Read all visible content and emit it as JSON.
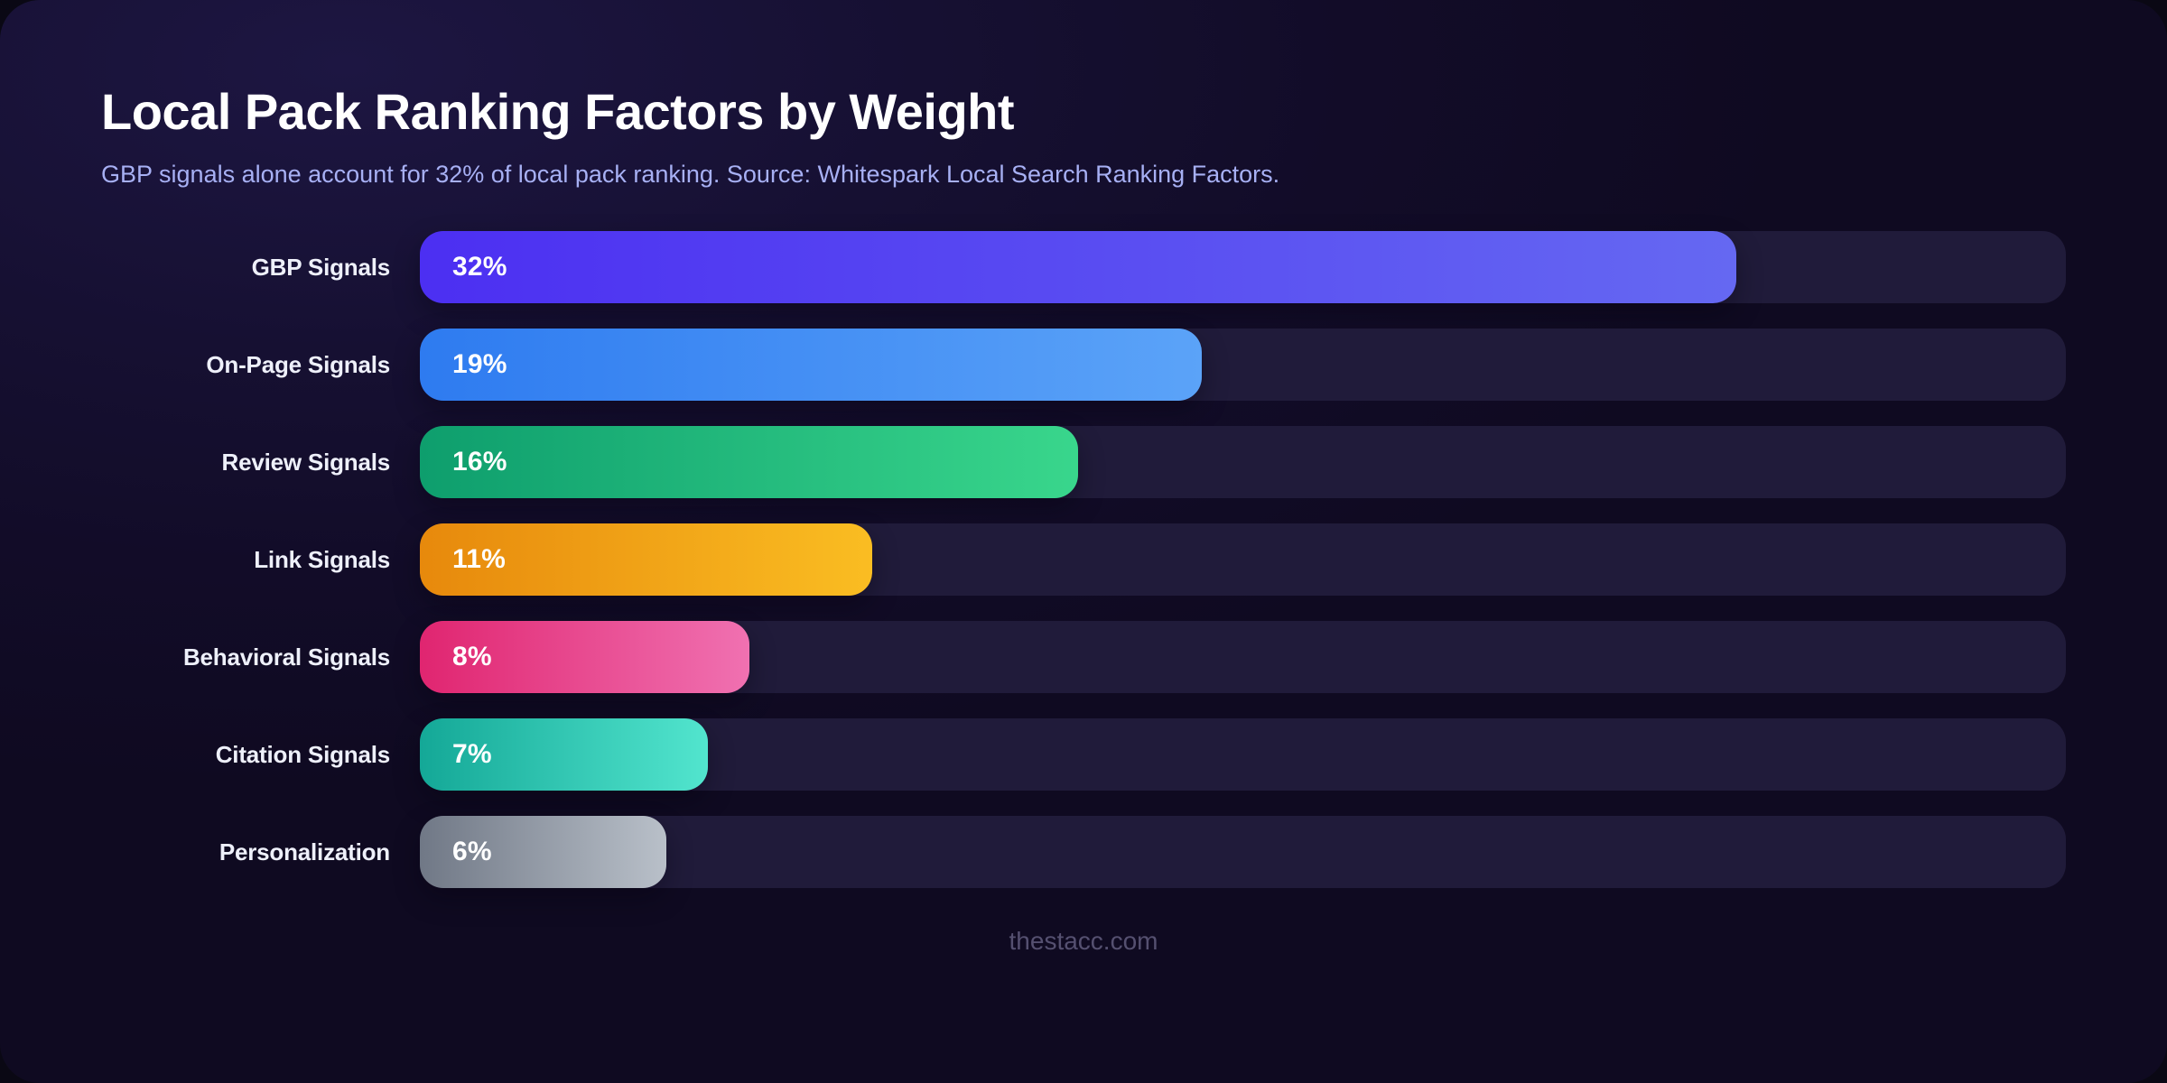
{
  "header": {
    "title": "Local Pack Ranking Factors by Weight",
    "subtitle": "GBP signals alone account for 32% of local pack ranking. Source: Whitespark Local Search Ranking Factors."
  },
  "chart_data": {
    "type": "bar",
    "orientation": "horizontal",
    "title": "Local Pack Ranking Factors by Weight",
    "subtitle": "GBP signals alone account for 32% of local pack ranking. Source: Whitespark Local Search Ranking Factors.",
    "categories": [
      "GBP Signals",
      "On-Page Signals",
      "Review Signals",
      "Link Signals",
      "Behavioral Signals",
      "Citation Signals",
      "Personalization"
    ],
    "values": [
      32,
      19,
      16,
      11,
      8,
      7,
      6
    ],
    "value_labels": [
      "32%",
      "19%",
      "16%",
      "11%",
      "8%",
      "7%",
      "6%"
    ],
    "xlim": [
      0,
      40
    ],
    "grid": false,
    "legend": false,
    "unit": "%",
    "track_color": "#201b3a",
    "bar_colors": [
      {
        "from": "#4c2ff2",
        "to": "#6568f2"
      },
      {
        "from": "#2e7bf0",
        "to": "#5ba3f8"
      },
      {
        "from": "#0e9e6d",
        "to": "#39d68c"
      },
      {
        "from": "#e7890c",
        "to": "#fabd22"
      },
      {
        "from": "#e02570",
        "to": "#f071b1"
      },
      {
        "from": "#14a897",
        "to": "#52e5ce"
      },
      {
        "from": "#707886",
        "to": "#b9c0c9"
      }
    ]
  },
  "footer": {
    "watermark": "thestacc.com"
  },
  "theme": {
    "backdrop": "#0a0814",
    "card_background": "#150f31",
    "title_color": "#ffffff",
    "subtitle_color": "#a7b0f4",
    "label_color": "#eef0fa",
    "value_color": "#ffffff",
    "watermark_color": "#555070"
  }
}
